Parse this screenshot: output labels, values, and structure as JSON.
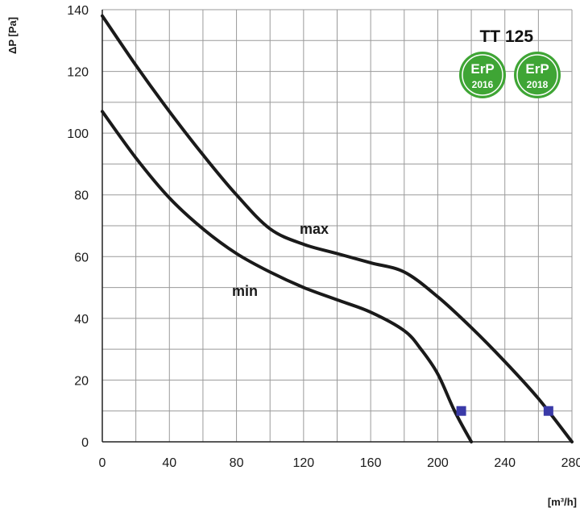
{
  "chart_data": {
    "type": "line",
    "title": "TT 125",
    "xlabel": "[m³/h]",
    "ylabel": "ΔP [Pa]",
    "xlim": [
      0,
      280
    ],
    "ylim": [
      0,
      140
    ],
    "x_ticks": [
      "0",
      "40",
      "80",
      "120",
      "160",
      "200",
      "240",
      "280"
    ],
    "y_ticks": [
      "0",
      "20",
      "40",
      "60",
      "80",
      "100",
      "120",
      "140"
    ],
    "grid": true,
    "series": [
      {
        "name": "max",
        "x": [
          0,
          20,
          40,
          60,
          80,
          100,
          120,
          140,
          160,
          180,
          200,
          220,
          240,
          260,
          280
        ],
        "y": [
          138,
          122,
          107,
          93,
          80,
          69,
          64,
          61,
          58,
          55,
          47,
          37,
          26,
          14,
          0
        ],
        "marker": {
          "x": 266,
          "y": 10
        }
      },
      {
        "name": "min",
        "x": [
          0,
          20,
          40,
          60,
          80,
          100,
          120,
          140,
          160,
          180,
          190,
          200,
          210,
          220
        ],
        "y": [
          107,
          92,
          79,
          69,
          61,
          55,
          50,
          46,
          42,
          36,
          30,
          22,
          10,
          0
        ],
        "marker": {
          "x": 214,
          "y": 10
        }
      }
    ],
    "colors": {
      "curve": "#1a1a1a",
      "grid": "#9a9a9a",
      "marker": "#3a3aa8",
      "badge": "#3fa535"
    },
    "badges": [
      {
        "top": "ErP",
        "year": "2016"
      },
      {
        "top": "ErP",
        "year": "2018"
      }
    ]
  }
}
